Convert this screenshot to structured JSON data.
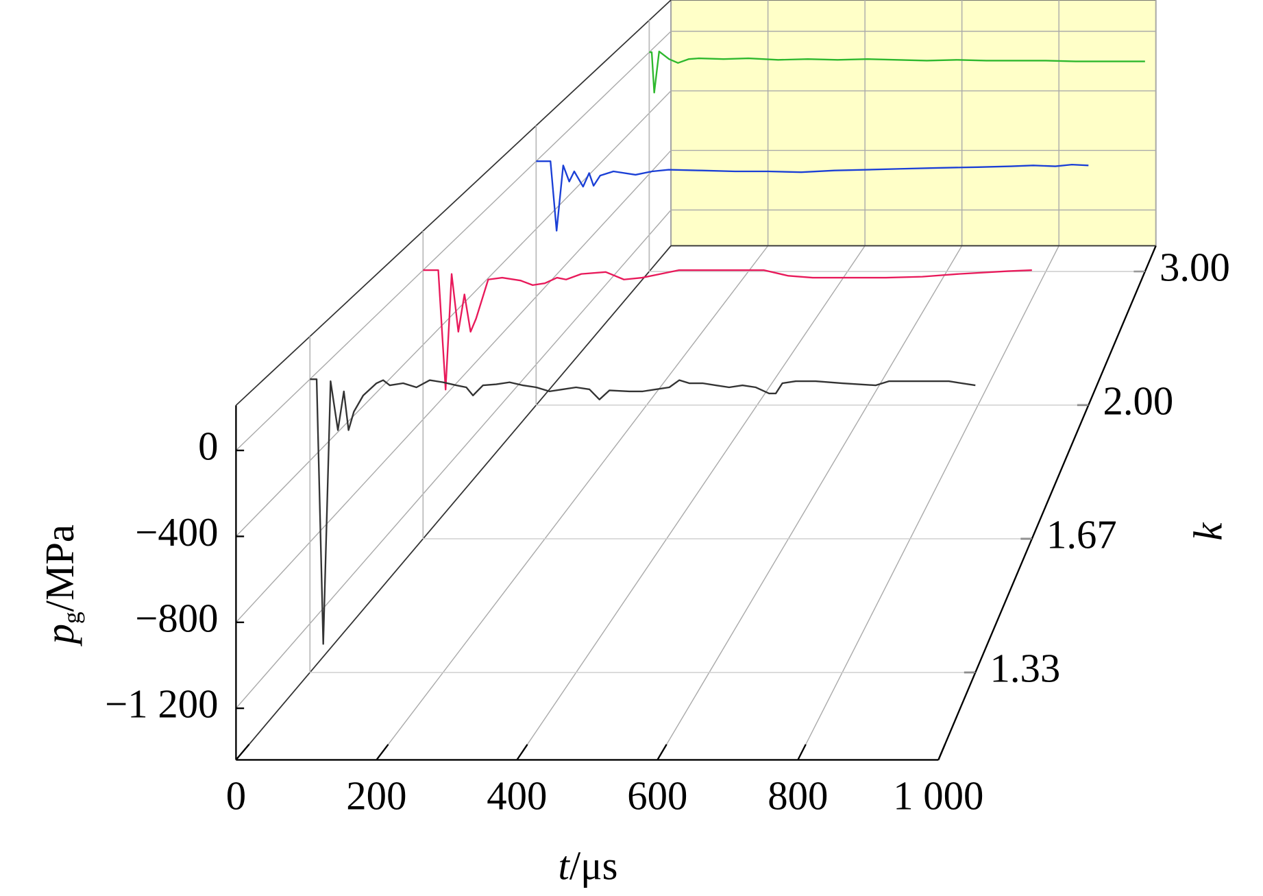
{
  "chart_data": {
    "type": "waterfall3d",
    "xlabel": {
      "symbol": "t",
      "unit": "/μs"
    },
    "ylabel": {
      "symbol": "p",
      "subscript": "g",
      "unit": "/MPa"
    },
    "zlabel": "k",
    "xlim": [
      0,
      1000
    ],
    "xticks": [
      0,
      200,
      400,
      600,
      800,
      {
        "value": 1000,
        "label": "1 000"
      }
    ],
    "ylim": [
      -1440,
      210
    ],
    "yticks": [
      0,
      {
        "value": -400,
        "label": "−400"
      },
      {
        "value": -800,
        "label": "−800"
      },
      {
        "value": -1200,
        "label": "−1 200"
      }
    ],
    "back_wall_color": "#ffffc8",
    "grid": true,
    "series": [
      {
        "name": "1.33",
        "color": "#333333",
        "x": [
          0,
          10,
          20,
          31,
          42,
          51,
          58,
          66,
          80,
          100,
          110,
          120,
          140,
          160,
          180,
          200,
          220,
          235,
          245,
          260,
          280,
          300,
          320,
          340,
          360,
          380,
          400,
          420,
          435,
          450,
          480,
          500,
          520,
          540,
          555,
          570,
          590,
          610,
          630,
          650,
          670,
          690,
          700,
          710,
          730,
          760,
          800,
          850,
          870,
          900,
          960,
          1000
        ],
        "values": [
          0,
          0,
          -1300,
          -10,
          -250,
          -60,
          -250,
          -160,
          -80,
          -20,
          -5,
          -30,
          -20,
          -40,
          -5,
          -15,
          -30,
          -40,
          -80,
          -30,
          -25,
          -15,
          -30,
          -40,
          -60,
          -50,
          -40,
          -50,
          -100,
          -55,
          -60,
          -60,
          -50,
          -40,
          -5,
          -20,
          -20,
          -30,
          -40,
          -30,
          -40,
          -70,
          -70,
          -20,
          -10,
          -10,
          -20,
          -30,
          -10,
          -10,
          -10,
          -30
        ]
      },
      {
        "name": "1.67",
        "color": "#e8195a",
        "x": [
          0,
          25,
          37,
          47,
          58,
          68,
          78,
          87,
          107,
          130,
          160,
          180,
          200,
          220,
          235,
          260,
          300,
          330,
          360,
          390,
          420,
          460,
          500,
          560,
          600,
          640,
          700,
          760,
          820,
          880,
          960,
          1000
        ],
        "values": [
          0,
          0,
          -640,
          -20,
          -330,
          -130,
          -330,
          -260,
          -50,
          -40,
          -55,
          -80,
          -70,
          -40,
          -50,
          -20,
          -10,
          -50,
          -40,
          -20,
          0,
          0,
          0,
          0,
          -30,
          -40,
          -40,
          -40,
          -35,
          -20,
          -5,
          0
        ]
      },
      {
        "name": "2.00",
        "color": "#1a3fd6",
        "x": [
          0,
          26,
          37,
          49,
          60,
          69,
          85,
          96,
          104,
          116,
          140,
          180,
          210,
          240,
          300,
          360,
          420,
          480,
          540,
          600,
          660,
          720,
          800,
          860,
          900,
          940,
          970,
          1000
        ],
        "values": [
          0,
          0,
          -410,
          -25,
          -120,
          -60,
          -150,
          -70,
          -145,
          -85,
          -60,
          -80,
          -60,
          -50,
          -55,
          -60,
          -60,
          -65,
          -55,
          -50,
          -45,
          -40,
          -35,
          -30,
          -25,
          -30,
          -20,
          -25
        ]
      },
      {
        "name": "3.00",
        "color": "#2db82d",
        "x": [
          0,
          5,
          10,
          20,
          40,
          58,
          80,
          100,
          150,
          200,
          260,
          320,
          380,
          440,
          500,
          560,
          620,
          680,
          740,
          800,
          860,
          920,
          1000
        ],
        "values": [
          0,
          0,
          -265,
          5,
          -45,
          -70,
          -45,
          -40,
          -45,
          -40,
          -50,
          -45,
          -50,
          -45,
          -50,
          -55,
          -50,
          -55,
          -55,
          -55,
          -60,
          -60,
          -60
        ]
      }
    ]
  }
}
